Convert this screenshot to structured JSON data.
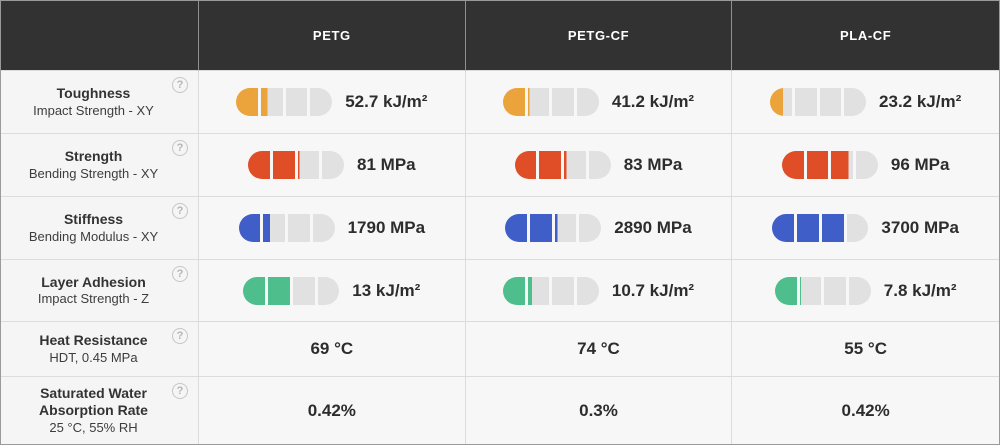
{
  "columns": [
    "PETG",
    "PETG-CF",
    "PLA-CF"
  ],
  "ui_colors": {
    "header_bg": "#323232",
    "header_text": "#ffffff",
    "cell_bg": "#f7f7f7",
    "grid_line": "#dcdcdc",
    "gauge_empty": "#e1e1e1",
    "toughness_color": "#EBA33B",
    "strength_color": "#DF4E26",
    "stiffness_color": "#3F5EC7",
    "adhesion_color": "#4FBE8D"
  },
  "help_icon_glyph": "?",
  "rows": [
    {
      "id": "toughness",
      "title": "Toughness",
      "subtitle": "Impact Strength - XY",
      "type": "gauge",
      "color": "#EBA33B",
      "cells": [
        {
          "value": "52.7 kJ/m²",
          "fill": 0.325
        },
        {
          "value": "41.2 kJ/m²",
          "fill": 0.265
        },
        {
          "value": "23.2 kJ/m²",
          "fill": 0.145
        }
      ]
    },
    {
      "id": "strength",
      "title": "Strength",
      "subtitle": "Bending Strength - XY",
      "type": "gauge",
      "color": "#DF4E26",
      "cells": [
        {
          "value": "81 MPa",
          "fill": 0.52
        },
        {
          "value": "83 MPa",
          "fill": 0.53
        },
        {
          "value": "96 MPa",
          "fill": 0.7
        }
      ]
    },
    {
      "id": "stiffness",
      "title": "Stiffness",
      "subtitle": "Bending Modulus - XY",
      "type": "gauge",
      "color": "#3F5EC7",
      "cells": [
        {
          "value": "1790 MPa",
          "fill": 0.33
        },
        {
          "value": "2890 MPa",
          "fill": 0.53
        },
        {
          "value": "3700 MPa",
          "fill": 0.75
        }
      ]
    },
    {
      "id": "layer-adhesion",
      "title": "Layer Adhesion",
      "subtitle": "Impact Strength - Z",
      "type": "gauge",
      "color": "#4FBE8D",
      "cells": [
        {
          "value": "13 kJ/m²",
          "fill": 0.5
        },
        {
          "value": "10.7 kJ/m²",
          "fill": 0.295
        },
        {
          "value": "7.8 kJ/m²",
          "fill": 0.26
        }
      ]
    },
    {
      "id": "heat-resistance",
      "title": "Heat Resistance",
      "subtitle": "HDT, 0.45 MPa",
      "type": "text",
      "cells": [
        {
          "value": "69 °C"
        },
        {
          "value": "74 °C"
        },
        {
          "value": "55 °C"
        }
      ]
    },
    {
      "id": "water-absorption",
      "title": "Saturated Water Absorption Rate",
      "subtitle": "25 °C, 55% RH",
      "type": "text",
      "cells": [
        {
          "value": "0.42%"
        },
        {
          "value": "0.3%"
        },
        {
          "value": "0.42%"
        }
      ]
    }
  ],
  "chart_data": {
    "type": "table",
    "title": "Filament material property comparison",
    "columns": [
      "PETG",
      "PETG-CF",
      "PLA-CF"
    ],
    "rows": [
      {
        "property": "Toughness (Impact Strength - XY)",
        "unit": "kJ/m²",
        "values": [
          52.7,
          41.2,
          23.2
        ],
        "gauge_fill_of_4": [
          1.3,
          1.06,
          0.58
        ]
      },
      {
        "property": "Strength (Bending Strength - XY)",
        "unit": "MPa",
        "values": [
          81,
          83,
          96
        ],
        "gauge_fill_of_4": [
          2.08,
          2.12,
          2.8
        ]
      },
      {
        "property": "Stiffness (Bending Modulus - XY)",
        "unit": "MPa",
        "values": [
          1790,
          2890,
          3700
        ],
        "gauge_fill_of_4": [
          1.32,
          2.12,
          3.0
        ]
      },
      {
        "property": "Layer Adhesion (Impact Strength - Z)",
        "unit": "kJ/m²",
        "values": [
          13,
          10.7,
          7.8
        ],
        "gauge_fill_of_4": [
          2.0,
          1.18,
          1.04
        ]
      },
      {
        "property": "Heat Resistance (HDT, 0.45 MPa)",
        "unit": "°C",
        "values": [
          69,
          74,
          55
        ],
        "gauge_fill_of_4": null
      },
      {
        "property": "Saturated Water Absorption Rate (25 °C, 55% RH)",
        "unit": "%",
        "values": [
          0.42,
          0.3,
          0.42
        ],
        "gauge_fill_of_4": null
      }
    ],
    "legend_position": "none",
    "grid": true
  }
}
